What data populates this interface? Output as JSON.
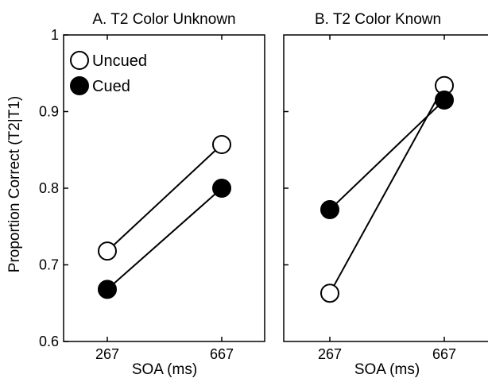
{
  "chart_data": [
    {
      "type": "line",
      "title": "A. T2 Color Unknown",
      "xlabel": "SOA (ms)",
      "ylabel": "Proportion Correct (T2|T1)",
      "categories": [
        "267",
        "667"
      ],
      "ylim": [
        0.6,
        1.0
      ],
      "yticks": [
        "0.6",
        "0.7",
        "0.8",
        "0.9",
        "1"
      ],
      "legend": "top-left",
      "grid": false,
      "series": [
        {
          "name": "Uncued",
          "marker": "open-circle",
          "values": [
            0.718,
            0.857
          ]
        },
        {
          "name": "Cued",
          "marker": "filled-circle",
          "values": [
            0.668,
            0.8
          ]
        }
      ]
    },
    {
      "type": "line",
      "title": "B. T2 Color Known",
      "xlabel": "SOA (ms)",
      "categories": [
        "267",
        "667"
      ],
      "ylim": [
        0.6,
        1.0
      ],
      "grid": false,
      "series": [
        {
          "name": "Uncued",
          "marker": "open-circle",
          "values": [
            0.663,
            0.934
          ]
        },
        {
          "name": "Cued",
          "marker": "filled-circle",
          "values": [
            0.772,
            0.915
          ]
        }
      ]
    }
  ],
  "legend": {
    "entries": [
      {
        "label": "Uncued",
        "marker": "open-circle"
      },
      {
        "label": "Cued",
        "marker": "filled-circle"
      }
    ]
  }
}
